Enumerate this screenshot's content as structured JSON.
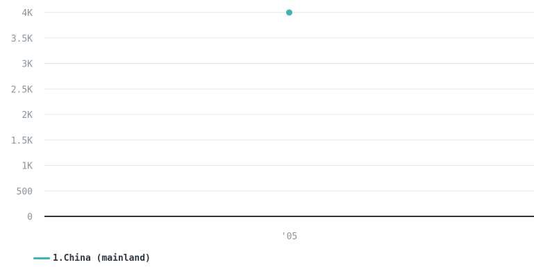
{
  "chart_data": {
    "type": "scatter",
    "title": "",
    "xlabel": "",
    "ylabel": "",
    "x_ticks": [
      "'05"
    ],
    "y_ticks": [
      "0",
      "500",
      "1K",
      "1.5K",
      "2K",
      "2.5K",
      "3K",
      "3.5K",
      "4K"
    ],
    "ylim": [
      0,
      4000
    ],
    "grid": true,
    "legend_position": "bottom-left",
    "series": [
      {
        "name": "1.China (mainland)",
        "color": "#3cb4b8",
        "points": [
          {
            "x": "'05",
            "y": 4000
          }
        ]
      }
    ]
  },
  "colors": {
    "grid": "#e6e8ea",
    "axis": "#2f3640",
    "tick_text": "#8b949c"
  }
}
